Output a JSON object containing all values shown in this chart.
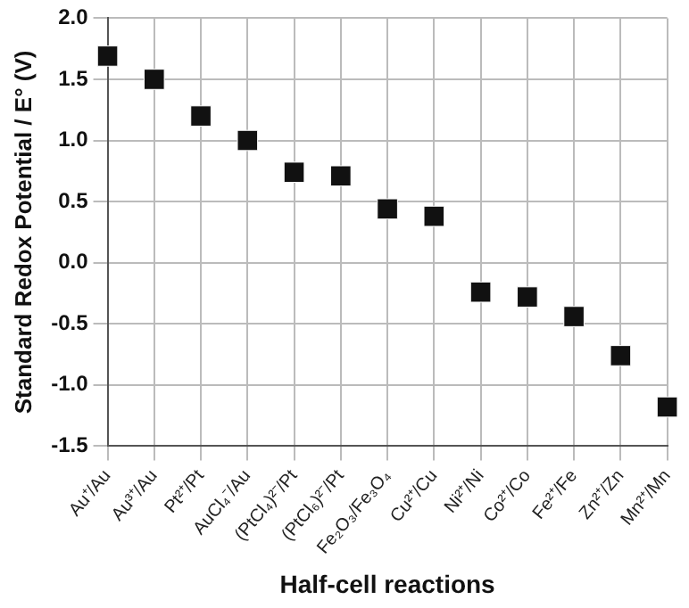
{
  "chart_data": {
    "type": "scatter",
    "xlabel": "Half-cell reactions",
    "ylabel": "Standard Redox Potential / E° (V)",
    "categories": [
      "Au⁺/Au",
      "Au³⁺/Au",
      "Pt²⁺/Pt",
      "AuCl₄⁻/Au",
      "(PtCl₄)²⁻/Pt",
      "(PtCl₆)²⁻/Pt",
      "Fe₂O₃/Fe₃O₄",
      "Cu²⁺/Cu",
      "Ni²⁺/Ni",
      "Co²⁺/Co",
      "Fe²⁺/Fe",
      "Zn²⁺/Zn",
      "Mn²⁺/Mn"
    ],
    "values": [
      1.69,
      1.5,
      1.2,
      1.0,
      0.74,
      0.71,
      0.44,
      0.38,
      -0.24,
      -0.28,
      -0.44,
      -0.76,
      -1.18
    ],
    "color": "#111111",
    "marker": "square",
    "ylim": [
      -1.5,
      2.0
    ],
    "yticks": [
      {
        "value": -1.5,
        "label": "-1.5"
      },
      {
        "value": -1.0,
        "label": "-1.0"
      },
      {
        "value": -0.5,
        "label": "-0.5"
      },
      {
        "value": 0,
        "label": "0.0"
      },
      {
        "value": 0.5,
        "label": "0.5"
      },
      {
        "value": 1.0,
        "label": "1.0"
      },
      {
        "value": 1.5,
        "label": "1.5"
      },
      {
        "value": 2.0,
        "label": "2.0"
      }
    ],
    "grid": true,
    "legend": false
  }
}
